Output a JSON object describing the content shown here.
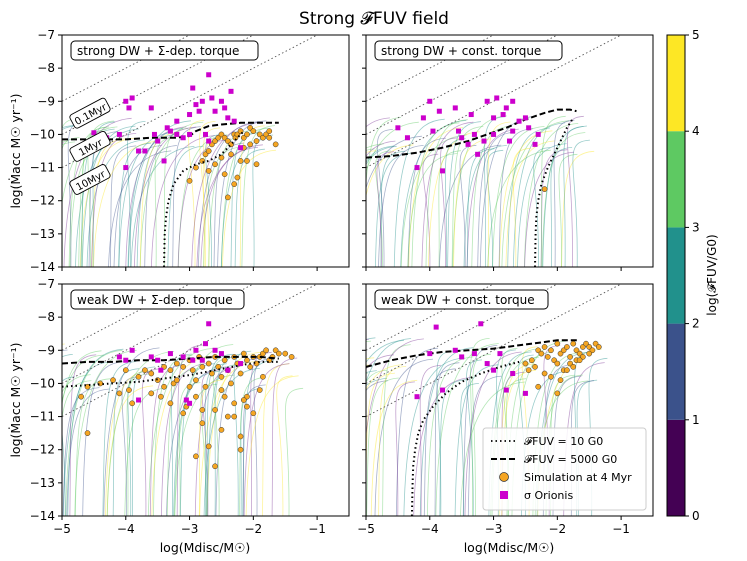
{
  "figure": {
    "title": "Strong 𝓕FUV field",
    "colorbar_label": "log(𝓕FUV/G0)",
    "xlabel": "log(Mdisc/M☉)",
    "ylabel": "log(Ṁacc M☉ yr⁻¹)"
  },
  "colorbar": {
    "ticks": [
      "0",
      "1",
      "2",
      "3",
      "4",
      "5"
    ],
    "bands": [
      {
        "from": 0,
        "to": 1,
        "color": "#440154"
      },
      {
        "from": 1,
        "to": 2,
        "color": "#3b528b"
      },
      {
        "from": 2,
        "to": 3,
        "color": "#21918c"
      },
      {
        "from": 3,
        "to": 4,
        "color": "#5ec962"
      },
      {
        "from": 4,
        "to": 5,
        "color": "#fde725"
      }
    ]
  },
  "colors": {
    "simulation": "#f5a623",
    "sigma_orionis": "#cc00cc",
    "track_green": "#5ec962",
    "track_teal": "#21918c",
    "track_blue": "#3b528b",
    "track_yellow": "#fde725",
    "track_purple": "#7b3294"
  },
  "legend": {
    "items": [
      {
        "label": "𝓕FUV = 10 G0",
        "style": "dotted"
      },
      {
        "label": "𝓕FUV = 5000 G0",
        "style": "dashed"
      },
      {
        "label": "Simulation at 4 Myr",
        "style": "orange-circle"
      },
      {
        "label": "σ Orionis",
        "style": "magenta-square"
      }
    ]
  },
  "isochrone_labels": [
    "0.1Myr",
    "1Myr",
    "10Myr"
  ],
  "chart_data": [
    {
      "type": "scatter",
      "panel": "top-left",
      "title": "strong DW + Σ-dep. torque",
      "xlim": [
        -5,
        -0.5
      ],
      "ylim": [
        -14,
        -7
      ],
      "xticks": [
        "−5",
        "−4",
        "−3",
        "−2",
        "−1"
      ],
      "yticks": [
        "−14",
        "−13",
        "−12",
        "−11",
        "−10",
        "−9",
        "−8",
        "−7"
      ],
      "show_xticklabels": false,
      "show_yticklabels": true,
      "show_isochrone_labels": true,
      "isochrones": [
        {
          "label": "0.1Myr",
          "offset": -4
        },
        {
          "label": "1Myr",
          "offset": -5
        },
        {
          "label": "10Myr",
          "offset": -6
        }
      ],
      "dashed_curve": {
        "x": [
          -5,
          -4.8,
          -4.5,
          -4,
          -3.6,
          -3.2,
          -3,
          -2.9,
          -2.7,
          -2.5,
          -2.2,
          -2,
          -1.8,
          -1.6
        ],
        "y": [
          -10.15,
          -10.15,
          -10.15,
          -10.15,
          -10.1,
          -10.1,
          -10.05,
          -9.9,
          -9.75,
          -9.7,
          -9.65,
          -9.65,
          -9.65,
          -9.65
        ]
      },
      "dotted_curve": {
        "x": [
          -3.4,
          -3.39,
          -3.37,
          -3.33,
          -3.25,
          -3.1,
          -2.9,
          -2.7,
          -2.5,
          -2.3,
          -2.15
        ],
        "y": [
          -14,
          -13,
          -12.5,
          -12,
          -11.5,
          -11.1,
          -10.9,
          -10.8,
          -10.6,
          -10.2,
          -9.9
        ]
      },
      "fan_center": -10.0,
      "fan_spread": 0.5,
      "fan_xmax": -1.5,
      "fan_start": -5,
      "simulation": {
        "x": [
          -2.9,
          -2.8,
          -2.75,
          -2.7,
          -2.65,
          -2.6,
          -2.55,
          -2.5,
          -2.45,
          -2.4,
          -2.35,
          -2.3,
          -2.28,
          -2.25,
          -2.2,
          -2.15,
          -2.1,
          -2.05,
          -2.0,
          -1.95,
          -1.9,
          -1.85,
          -1.8,
          -1.75,
          -2.6,
          -2.5,
          -2.45,
          -2.35,
          -2.3,
          -2.2,
          -2.15,
          -2.05,
          -1.95,
          -2.7,
          -2.4,
          -2.25,
          -2.1,
          -1.75,
          -1.65,
          -3.0
        ],
        "y": [
          -11.0,
          -10.8,
          -10.6,
          -10.5,
          -10.3,
          -10.2,
          -10.1,
          -10.0,
          -10.1,
          -10.2,
          -10.3,
          -10.0,
          -10.1,
          -10.0,
          -9.9,
          -10.1,
          -10.0,
          -9.8,
          -9.9,
          -10.2,
          -10.0,
          -10.1,
          -10.0,
          -9.9,
          -10.9,
          -10.7,
          -11.2,
          -10.6,
          -11.5,
          -10.8,
          -10.4,
          -10.3,
          -10.9,
          -11.1,
          -11.9,
          -11.3,
          -10.8,
          -10.1,
          -10.3,
          -11.4
        ]
      },
      "sigma_orionis": {
        "x": [
          -4.5,
          -4.45,
          -4.3,
          -4.1,
          -4.0,
          -3.95,
          -3.9,
          -3.8,
          -3.6,
          -3.55,
          -3.5,
          -3.4,
          -3.35,
          -3.3,
          -3.2,
          -3.1,
          -3.0,
          -2.95,
          -2.9,
          -2.85,
          -2.8,
          -2.75,
          -2.7,
          -2.65,
          -2.6,
          -2.5,
          -2.45,
          -2.4,
          -2.35,
          -2.3,
          -2.2,
          -3.0,
          -3.2,
          -2.7,
          -4.0,
          -3.7
        ],
        "y": [
          -9.95,
          -10.15,
          -10.1,
          -10.0,
          -9.0,
          -9.2,
          -8.9,
          -10.5,
          -9.2,
          -10.0,
          -10.2,
          -10.8,
          -9.8,
          -9.9,
          -10.0,
          -10.1,
          -9.4,
          -8.6,
          -9.1,
          -9.3,
          -9.0,
          -10.0,
          -8.2,
          -8.9,
          -9.3,
          -9.0,
          -9.2,
          -9.5,
          -8.7,
          -9.6,
          -10.4,
          -10.0,
          -9.6,
          -10.2,
          -11.0,
          -10.5
        ]
      }
    },
    {
      "type": "scatter",
      "panel": "top-right",
      "title": "strong DW + const. torque",
      "xlim": [
        -5,
        -0.5
      ],
      "ylim": [
        -14,
        -7
      ],
      "xticks": [
        "−5",
        "−4",
        "−3",
        "−2",
        "−1"
      ],
      "yticks": [
        "−14",
        "−13",
        "−12",
        "−11",
        "−10",
        "−9",
        "−8",
        "−7"
      ],
      "show_xticklabels": false,
      "show_yticklabels": false,
      "show_isochrone_labels": false,
      "isochrones": [
        {
          "label": "0.1Myr",
          "offset": -4
        },
        {
          "label": "1Myr",
          "offset": -5
        },
        {
          "label": "10Myr",
          "offset": -6
        }
      ],
      "dashed_curve": {
        "x": [
          -5,
          -4.6,
          -4.2,
          -3.8,
          -3.4,
          -3.1,
          -2.8,
          -2.5,
          -2.2,
          -2.0,
          -1.8,
          -1.7
        ],
        "y": [
          -10.7,
          -10.65,
          -10.55,
          -10.4,
          -10.2,
          -10.0,
          -9.8,
          -9.55,
          -9.35,
          -9.25,
          -9.25,
          -9.3
        ]
      },
      "dotted_curve": {
        "x": [
          -2.35,
          -2.34,
          -2.33,
          -2.3,
          -2.25,
          -2.15,
          -2.05,
          -1.95,
          -1.85,
          -1.75
        ],
        "y": [
          -14,
          -13,
          -12.5,
          -12,
          -11.5,
          -11,
          -10.6,
          -10.2,
          -9.8,
          -9.5
        ]
      },
      "fan_center": -10.0,
      "fan_spread": 0.6,
      "fan_xmax": -1.4,
      "fan_start": -5,
      "simulation": {
        "x": [
          -2.2
        ],
        "y": [
          -11.65
        ]
      },
      "sigma_orionis": {
        "x": [
          -4.5,
          -4.35,
          -4.1,
          -4.0,
          -3.95,
          -3.85,
          -3.6,
          -3.55,
          -3.5,
          -3.4,
          -3.35,
          -3.3,
          -3.25,
          -3.15,
          -3.1,
          -3.0,
          -2.95,
          -2.85,
          -2.8,
          -2.75,
          -2.7,
          -2.6,
          -2.5,
          -2.45,
          -2.35,
          -2.3,
          -4.2,
          -3.8,
          -3.0,
          -2.7
        ],
        "y": [
          -9.8,
          -10.1,
          -9.5,
          -9.0,
          -9.9,
          -9.3,
          -9.2,
          -9.9,
          -10.1,
          -10.3,
          -9.4,
          -10.0,
          -10.6,
          -10.2,
          -9.0,
          -9.5,
          -8.9,
          -9.4,
          -9.2,
          -10.2,
          -9.0,
          -9.6,
          -9.5,
          -9.8,
          -10.3,
          -10.0,
          -11.0,
          -11.1,
          -10.0,
          -9.9
        ]
      }
    },
    {
      "type": "scatter",
      "panel": "bottom-left",
      "title": "weak DW + Σ-dep. torque",
      "xlim": [
        -5,
        -0.5
      ],
      "ylim": [
        -14,
        -7
      ],
      "xticks": [
        "−5",
        "−4",
        "−3",
        "−2",
        "−1"
      ],
      "yticks": [
        "−14",
        "−13",
        "−12",
        "−11",
        "−10",
        "−9",
        "−8",
        "−7"
      ],
      "show_xticklabels": true,
      "show_yticklabels": true,
      "show_isochrone_labels": false,
      "isochrones": [
        {
          "label": "0.1Myr",
          "offset": -4
        },
        {
          "label": "1Myr",
          "offset": -5
        },
        {
          "label": "10Myr",
          "offset": -6
        }
      ],
      "dashed_curve": {
        "x": [
          -5,
          -4.6,
          -4.2,
          -3.8,
          -3.4,
          -3.0,
          -2.6,
          -2.2,
          -1.9,
          -1.6
        ],
        "y": [
          -9.4,
          -9.35,
          -9.35,
          -9.3,
          -9.3,
          -9.25,
          -9.2,
          -9.2,
          -9.2,
          -9.25
        ]
      },
      "dotted_curve": {
        "x": [
          -5,
          -4.6,
          -4.2,
          -3.8,
          -3.4,
          -3.0,
          -2.6,
          -2.2,
          -1.9,
          -1.6
        ],
        "y": [
          -10.1,
          -10.05,
          -10.0,
          -9.95,
          -9.85,
          -9.75,
          -9.6,
          -9.45,
          -9.35,
          -9.35
        ]
      },
      "fan_center": -9.5,
      "fan_spread": 0.7,
      "fan_xmax": -1.2,
      "fan_start": -5,
      "simulation": {
        "x": [
          -4.7,
          -4.6,
          -4.4,
          -4.2,
          -4.0,
          -3.95,
          -3.9,
          -3.8,
          -3.7,
          -3.6,
          -3.5,
          -3.45,
          -3.4,
          -3.3,
          -3.25,
          -3.2,
          -3.1,
          -3.05,
          -3.0,
          -2.95,
          -2.9,
          -2.85,
          -2.8,
          -2.75,
          -2.7,
          -2.65,
          -2.6,
          -2.55,
          -2.5,
          -2.45,
          -2.4,
          -2.35,
          -2.3,
          -2.25,
          -2.2,
          -2.15,
          -2.1,
          -2.05,
          -2.0,
          -1.95,
          -1.9,
          -1.85,
          -1.8,
          -1.75,
          -1.7,
          -1.65,
          -1.6,
          -1.5,
          -1.4,
          -3.6,
          -3.3,
          -3.1,
          -2.9,
          -2.8,
          -2.6,
          -2.5,
          -2.4,
          -2.3,
          -2.2,
          -2.1,
          -2.0,
          -2.9,
          -2.7,
          -2.5,
          -2.3,
          -2.1,
          -3.2,
          -3.4,
          -2.6,
          -2.2,
          -1.9,
          -2.8,
          -4.6,
          -4.1,
          -3.0,
          -2.45,
          -2.15,
          -1.85
        ],
        "y": [
          -10.4,
          -11.5,
          -10.0,
          -9.9,
          -9.6,
          -10.2,
          -10.6,
          -9.8,
          -9.6,
          -9.7,
          -9.9,
          -10.4,
          -9.5,
          -9.6,
          -10.0,
          -9.4,
          -9.5,
          -10.7,
          -9.3,
          -9.6,
          -9.9,
          -9.2,
          -9.5,
          -10.1,
          -9.4,
          -9.7,
          -9.2,
          -9.5,
          -9.8,
          -9.3,
          -9.6,
          -10.0,
          -9.2,
          -9.4,
          -9.7,
          -9.1,
          -9.3,
          -9.5,
          -9.2,
          -9.4,
          -9.2,
          -9.1,
          -9.0,
          -9.3,
          -9.2,
          -9.0,
          -9.1,
          -9.1,
          -9.2,
          -10.3,
          -10.6,
          -10.9,
          -10.4,
          -11.2,
          -10.8,
          -10.2,
          -11.0,
          -10.6,
          -11.6,
          -10.4,
          -10.9,
          -12.2,
          -11.9,
          -11.4,
          -11.0,
          -10.7,
          -9.9,
          -10.1,
          -12.5,
          -12.0,
          -10.2,
          -10.8,
          -10.1,
          -10.3,
          -10.1,
          -10.4,
          -10.5,
          -9.8
        ]
      },
      "sigma_orionis": {
        "x": [
          -4.1,
          -4.0,
          -3.9,
          -3.6,
          -3.5,
          -3.45,
          -3.3,
          -3.1,
          -3.05,
          -2.95,
          -2.9,
          -2.8,
          -2.75,
          -2.7,
          -2.6,
          -2.5,
          -3.0,
          -3.8,
          -2.4,
          -2.2
        ],
        "y": [
          -9.2,
          -9.3,
          -9.0,
          -9.2,
          -9.3,
          -9.6,
          -9.1,
          -9.2,
          -10.5,
          -9.3,
          -9.0,
          -9.3,
          -8.8,
          -8.2,
          -9.0,
          -9.1,
          -10.6,
          -10.5,
          -9.6,
          -9.4
        ]
      }
    },
    {
      "type": "scatter",
      "panel": "bottom-right",
      "title": "weak DW + const. torque",
      "xlim": [
        -5,
        -0.5
      ],
      "ylim": [
        -14,
        -7
      ],
      "xticks": [
        "−5",
        "−4",
        "−3",
        "−2",
        "−1"
      ],
      "yticks": [
        "−14",
        "−13",
        "−12",
        "−11",
        "−10",
        "−9",
        "−8",
        "−7"
      ],
      "show_xticklabels": true,
      "show_yticklabels": false,
      "show_isochrone_labels": false,
      "isochrones": [
        {
          "label": "0.1Myr",
          "offset": -4
        },
        {
          "label": "1Myr",
          "offset": -5
        },
        {
          "label": "10Myr",
          "offset": -6
        }
      ],
      "dashed_curve": {
        "x": [
          -5,
          -4.6,
          -4.2,
          -3.8,
          -3.4,
          -3.0,
          -2.6,
          -2.2,
          -2.0,
          -1.8,
          -1.65
        ],
        "y": [
          -9.5,
          -9.3,
          -9.15,
          -9.05,
          -9.0,
          -8.95,
          -8.85,
          -8.75,
          -8.7,
          -8.7,
          -8.7
        ]
      },
      "dotted_curve": {
        "x": [
          -4.28,
          -4.27,
          -4.26,
          -4.23,
          -4.18,
          -4.1,
          -3.95,
          -3.75,
          -3.5,
          -3.2,
          -2.9,
          -2.6
        ],
        "y": [
          -14,
          -13,
          -12.5,
          -12,
          -11.5,
          -11.1,
          -10.7,
          -10.3,
          -9.95,
          -9.7,
          -9.5,
          -9.35
        ]
      },
      "fan_center": -9.3,
      "fan_spread": 0.7,
      "fan_xmax": -1.2,
      "fan_start": -5,
      "simulation": {
        "x": [
          -2.3,
          -2.25,
          -2.2,
          -2.15,
          -2.1,
          -2.05,
          -2.0,
          -1.95,
          -1.9,
          -1.85,
          -1.8,
          -1.75,
          -1.7,
          -1.65,
          -1.6,
          -1.55,
          -1.5,
          -1.45,
          -1.4,
          -1.35,
          -2.4,
          -2.35,
          -2.5,
          -2.45,
          -2.0,
          -1.9,
          -1.8,
          -1.7,
          -1.6,
          -1.5,
          -2.2,
          -2.1,
          -1.95,
          -1.85,
          -1.75,
          -1.65,
          -2.3,
          -2.0
        ],
        "y": [
          -9.0,
          -9.1,
          -8.9,
          -9.2,
          -9.0,
          -9.3,
          -8.8,
          -9.1,
          -9.0,
          -8.9,
          -9.2,
          -8.8,
          -9.0,
          -9.1,
          -8.9,
          -8.8,
          -8.9,
          -9.0,
          -8.8,
          -8.9,
          -9.3,
          -9.5,
          -9.4,
          -9.6,
          -9.4,
          -9.6,
          -9.4,
          -9.3,
          -9.2,
          -9.1,
          -9.7,
          -9.8,
          -9.9,
          -9.6,
          -9.5,
          -9.3,
          -10.1,
          -10.3
        ]
      },
      "sigma_orionis": {
        "x": [
          -4.0,
          -3.9,
          -3.6,
          -3.5,
          -3.3,
          -3.2,
          -3.0,
          -2.9,
          -2.8,
          -2.7,
          -2.5,
          -4.2,
          -3.8,
          -3.1
        ],
        "y": [
          -9.1,
          -8.3,
          -9.0,
          -9.2,
          -9.1,
          -8.2,
          -9.6,
          -9.1,
          -10.2,
          -9.7,
          -10.3,
          -10.4,
          -10.2,
          -9.4
        ]
      }
    }
  ]
}
